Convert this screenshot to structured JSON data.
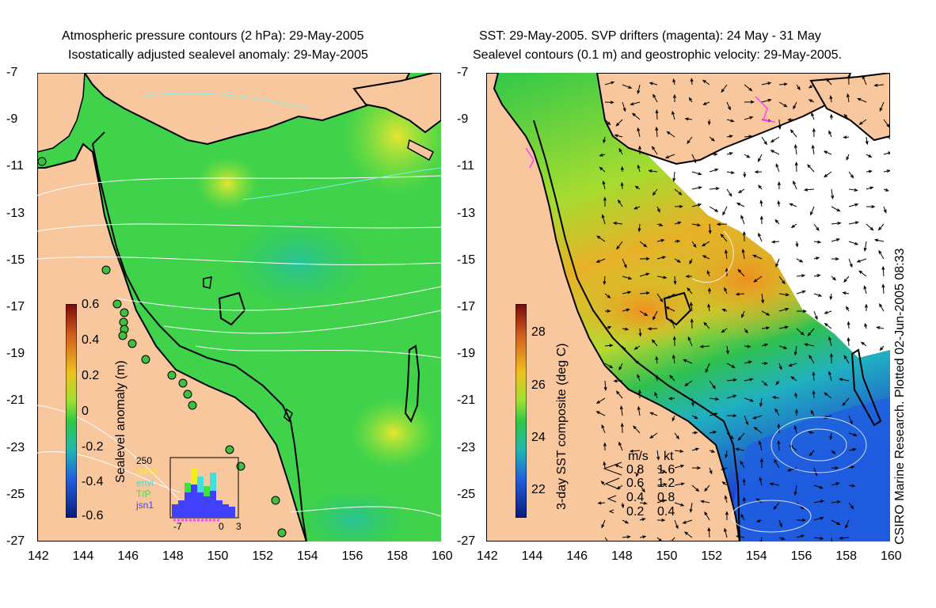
{
  "left_title_1": "Atmospheric pressure contours (2 hPa): 29-May-2005",
  "left_title_2": "Isostatically adjusted sealevel anomaly: 29-May-2005",
  "right_title_1": "SST: 29-May-2005. SVP drifters (magenta): 24 May - 31 May",
  "right_title_2": "Sealevel contours (0.1 m) and geostrophic velocity: 29-May-2005.",
  "side_label": "CSIRO Marine Research. Plotted 02-Jun-2005 08:33",
  "colors": {
    "land": "#f9c79e",
    "sea_green": "#3fd24a",
    "sst_warm": "#f0a020",
    "sst_cool": "#2060e0",
    "pressure_contour": "#ffffff",
    "drifter": "#ff40ff"
  },
  "inset": {
    "max_label": "250",
    "series": [
      "GFO",
      "envi",
      "T/P",
      "jsn1"
    ],
    "series_colors": [
      "#f0f020",
      "#40e0e0",
      "#40e040",
      "#4040ff"
    ],
    "x_ticks": [
      "-7",
      "0",
      "3"
    ]
  },
  "velocity_legend": {
    "headers": [
      "m/s",
      "kt"
    ],
    "rows": [
      [
        "0.8",
        "1.6"
      ],
      [
        "0.6",
        "1.2"
      ],
      [
        "0.4",
        "0.8"
      ],
      [
        "0.2",
        "0.4"
      ]
    ]
  },
  "chart_data": [
    {
      "type": "heatmap",
      "title": "Atmospheric pressure contours (2 hPa): 29-May-2005 / Isostatically adjusted sealevel anomaly: 29-May-2005",
      "xlabel": "",
      "ylabel": "",
      "x_ticks": [
        142,
        144,
        146,
        148,
        150,
        152,
        154,
        156,
        158,
        160
      ],
      "y_ticks": [
        -7,
        -9,
        -11,
        -13,
        -15,
        -17,
        -19,
        -21,
        -23,
        -25,
        -27
      ],
      "xlim": [
        142,
        160
      ],
      "ylim": [
        -27,
        -7
      ],
      "colorbar": {
        "label": "Sealevel anomaly (m)",
        "ticks": [
          "0.6",
          "0.4",
          "0.2",
          "0",
          "-0.2",
          "-0.4",
          "-0.6"
        ],
        "range": [
          -0.6,
          0.6
        ]
      }
    },
    {
      "type": "heatmap",
      "title": "SST: 29-May-2005. SVP drifters (magenta): 24 May - 31 May / Sealevel contours (0.1 m) and geostrophic velocity: 29-May-2005.",
      "xlabel": "",
      "ylabel": "",
      "x_ticks": [
        142,
        144,
        146,
        148,
        150,
        152,
        154,
        156,
        158,
        160
      ],
      "y_ticks": [
        -7,
        -9,
        -11,
        -13,
        -15,
        -17,
        -19,
        -21,
        -23,
        -25,
        -27
      ],
      "xlim": [
        142,
        160
      ],
      "ylim": [
        -27,
        -7
      ],
      "colorbar": {
        "label": "3-day SST composite (deg C)",
        "ticks": [
          "28",
          "26",
          "24",
          "22"
        ],
        "range": [
          21,
          29
        ]
      }
    }
  ]
}
